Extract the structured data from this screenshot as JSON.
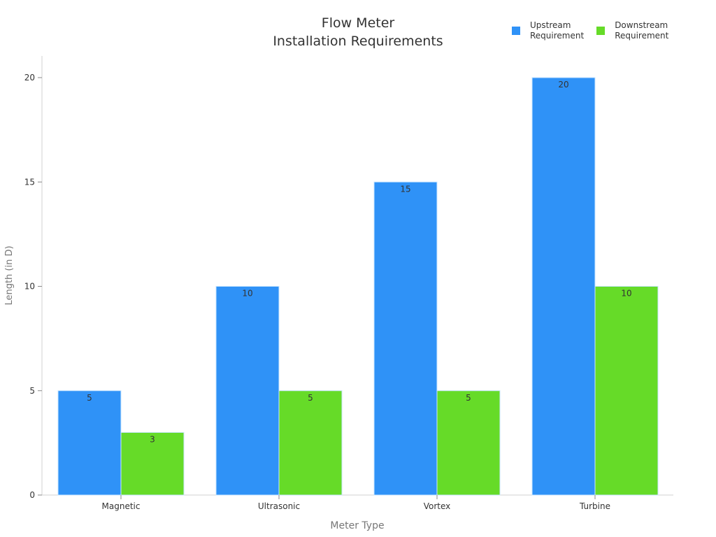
{
  "chart_data": {
    "type": "bar",
    "title": "Flow Meter\nInstallation Requirements",
    "xlabel": "Meter Type",
    "ylabel": "Length (in D)",
    "categories": [
      "Magnetic",
      "Ultrasonic",
      "Vortex",
      "Turbine"
    ],
    "series": [
      {
        "name": "Upstream Requirement",
        "values": [
          5,
          10,
          15,
          20
        ],
        "color": "#2f92f7"
      },
      {
        "name": "Downstream Requirement",
        "values": [
          3,
          5,
          5,
          10
        ],
        "color": "#66db28"
      }
    ],
    "ylim": [
      0,
      21
    ],
    "yticks": [
      0,
      5,
      10,
      15,
      20
    ],
    "grid": false,
    "legend_position": "top-right",
    "data_labels": true
  },
  "title_line1": "Flow Meter",
  "title_line2": "Installation Requirements",
  "legend": [
    {
      "label": "Upstream\nRequirement",
      "color": "#2f92f7"
    },
    {
      "label": "Downstream\nRequirement",
      "color": "#66db28"
    }
  ]
}
